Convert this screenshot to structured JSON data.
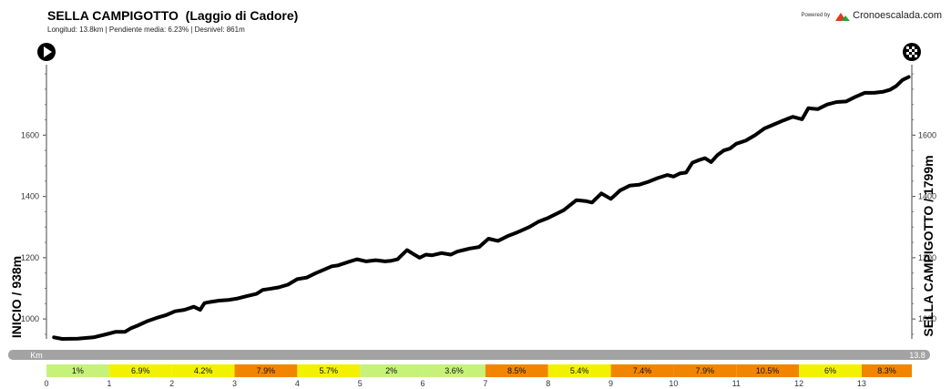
{
  "header": {
    "title": "SELLA CAMPIGOTTO  (Laggio di Cadore)",
    "subtitle": "Longitud: 13.8km | Pendiente media: 6.23% | Desnivel: 861m",
    "powered_by": "Powered by",
    "brand": "Cronoescalada.com",
    "brand_logo_colors": [
      "#e03a1e",
      "#2f9e36"
    ]
  },
  "icons": {
    "start": "play-icon",
    "finish": "checkered-flag-icon"
  },
  "chart_data": {
    "type": "line",
    "start_label": "INICIO / 938m",
    "end_label": "SELLA CAMPIGOTTO / 1799m",
    "x_unit_label": "Km",
    "x_end_label": "13.8",
    "xlim": [
      0,
      13.8
    ],
    "ylim": [
      935,
      1830
    ],
    "yticks": [
      1000,
      1200,
      1400,
      1600
    ],
    "xticks": [
      0,
      1,
      2,
      3,
      4,
      5,
      6,
      7,
      8,
      9,
      10,
      11,
      12,
      13
    ],
    "grid": false,
    "series": [
      {
        "x": [
          0.12,
          0.25,
          0.5,
          0.75,
          0.95,
          1.1,
          1.25,
          1.35,
          1.45,
          1.6,
          1.75,
          1.9,
          2.05,
          2.2,
          2.35,
          2.45,
          2.52,
          2.6,
          2.75,
          2.9,
          3.05,
          3.2,
          3.35,
          3.45,
          3.55,
          3.7,
          3.85,
          4.0,
          4.15,
          4.3,
          4.45,
          4.55,
          4.65,
          4.8,
          4.95,
          5.1,
          5.25,
          5.4,
          5.5,
          5.6,
          5.65,
          5.75,
          5.85,
          5.95,
          6.05,
          6.15,
          6.3,
          6.45,
          6.55,
          6.65,
          6.75,
          6.9,
          7.05,
          7.2,
          7.35,
          7.5,
          7.7,
          7.85,
          8.0,
          8.15,
          8.25,
          8.45,
          8.6,
          8.7,
          8.85,
          9.0,
          9.15,
          9.3,
          9.45,
          9.6,
          9.75,
          9.9,
          10.0,
          10.1,
          10.2,
          10.3,
          10.4,
          10.5,
          10.6,
          10.7,
          10.8,
          10.9,
          11.0,
          11.15,
          11.3,
          11.45,
          11.6,
          11.75,
          11.9,
          12.05,
          12.15,
          12.3,
          12.45,
          12.6,
          12.75,
          12.9,
          13.05,
          13.2,
          13.35,
          13.45,
          13.55,
          13.65,
          13.75
        ],
        "y": [
          940,
          935,
          936,
          940,
          950,
          958,
          958,
          970,
          978,
          992,
          1003,
          1012,
          1025,
          1030,
          1040,
          1030,
          1052,
          1055,
          1060,
          1062,
          1067,
          1075,
          1082,
          1095,
          1098,
          1103,
          1112,
          1130,
          1135,
          1150,
          1163,
          1172,
          1175,
          1185,
          1195,
          1188,
          1192,
          1188,
          1190,
          1195,
          1205,
          1225,
          1212,
          1200,
          1210,
          1208,
          1215,
          1210,
          1220,
          1225,
          1230,
          1235,
          1262,
          1255,
          1270,
          1282,
          1300,
          1318,
          1330,
          1345,
          1355,
          1388,
          1385,
          1380,
          1410,
          1392,
          1420,
          1435,
          1438,
          1448,
          1460,
          1470,
          1465,
          1475,
          1478,
          1510,
          1518,
          1525,
          1512,
          1535,
          1550,
          1556,
          1572,
          1582,
          1600,
          1622,
          1635,
          1648,
          1660,
          1652,
          1688,
          1685,
          1700,
          1708,
          1710,
          1725,
          1738,
          1738,
          1742,
          1748,
          1760,
          1780,
          1790
        ]
      }
    ],
    "segments": [
      {
        "km": [
          0,
          1
        ],
        "label": "1%",
        "color": "#c6f27a"
      },
      {
        "km": [
          1,
          2
        ],
        "label": "6.9%",
        "color": "#f2f200"
      },
      {
        "km": [
          2,
          3
        ],
        "label": "4.2%",
        "color": "#f2f200"
      },
      {
        "km": [
          3,
          4
        ],
        "label": "7.9%",
        "color": "#f28500"
      },
      {
        "km": [
          4,
          5
        ],
        "label": "5.7%",
        "color": "#f2f200"
      },
      {
        "km": [
          5,
          6
        ],
        "label": "2%",
        "color": "#c6f27a"
      },
      {
        "km": [
          6,
          7
        ],
        "label": "3.6%",
        "color": "#c6f27a"
      },
      {
        "km": [
          7,
          8
        ],
        "label": "8.5%",
        "color": "#f28500"
      },
      {
        "km": [
          8,
          9
        ],
        "label": "5.4%",
        "color": "#f2f200"
      },
      {
        "km": [
          9,
          10
        ],
        "label": "7.4%",
        "color": "#f28500"
      },
      {
        "km": [
          10,
          11
        ],
        "label": "7.9%",
        "color": "#f28500"
      },
      {
        "km": [
          11,
          12
        ],
        "label": "10.5%",
        "color": "#f28500"
      },
      {
        "km": [
          12,
          13
        ],
        "label": "6%",
        "color": "#f2f200"
      },
      {
        "km": [
          13,
          13.8
        ],
        "label": "8.3%",
        "color": "#f28500"
      }
    ],
    "colors": {
      "line": "#000000",
      "axis": "#333333",
      "bar": "#a3a3a3"
    }
  }
}
